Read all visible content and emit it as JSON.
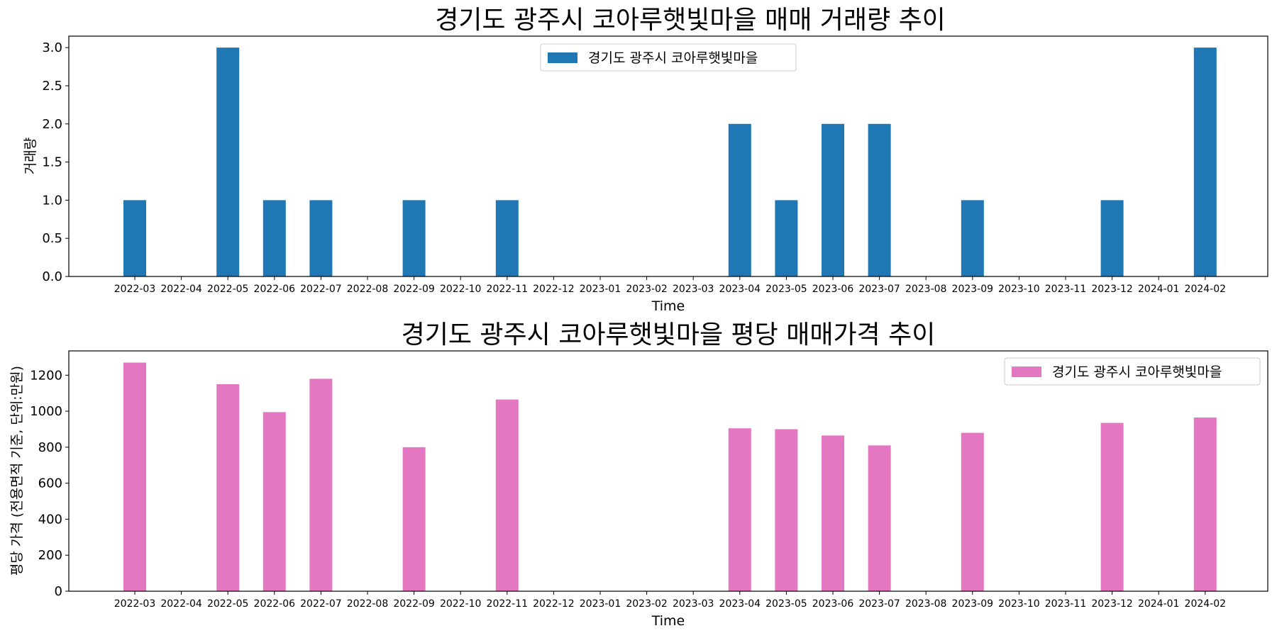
{
  "chart_data": [
    {
      "type": "bar",
      "title": "경기도 광주시 코아루햇빛마을 매매 거래량 추이",
      "xlabel": "Time",
      "ylabel": "거래량",
      "categories": [
        "2022-03",
        "2022-04",
        "2022-05",
        "2022-06",
        "2022-07",
        "2022-08",
        "2022-09",
        "2022-10",
        "2022-11",
        "2022-12",
        "2023-01",
        "2023-02",
        "2023-03",
        "2023-04",
        "2023-05",
        "2023-06",
        "2023-07",
        "2023-08",
        "2023-09",
        "2023-10",
        "2023-11",
        "2023-12",
        "2024-01",
        "2024-02"
      ],
      "series": [
        {
          "name": "경기도 광주시 코아루햇빛마을",
          "color": "#1f77b4",
          "values": [
            1,
            0,
            3,
            1,
            1,
            0,
            1,
            0,
            1,
            0,
            0,
            0,
            0,
            2,
            1,
            2,
            2,
            0,
            1,
            0,
            0,
            1,
            0,
            3
          ]
        }
      ],
      "ylim": [
        0,
        3.15
      ],
      "yticks": [
        "0.0",
        "0.5",
        "1.0",
        "1.5",
        "2.0",
        "2.5",
        "3.0"
      ],
      "legend_position": "upper-center",
      "grid": false
    },
    {
      "type": "bar",
      "title": "경기도 광주시 코아루햇빛마을 평당 매매가격 추이",
      "xlabel": "Time",
      "ylabel": "평당 가격 (전용면적 기준, 단위:만원)",
      "categories": [
        "2022-03",
        "2022-04",
        "2022-05",
        "2022-06",
        "2022-07",
        "2022-08",
        "2022-09",
        "2022-10",
        "2022-11",
        "2022-12",
        "2023-01",
        "2023-02",
        "2023-03",
        "2023-04",
        "2023-05",
        "2023-06",
        "2023-07",
        "2023-08",
        "2023-09",
        "2023-10",
        "2023-11",
        "2023-12",
        "2024-01",
        "2024-02"
      ],
      "series": [
        {
          "name": "경기도 광주시 코아루햇빛마을",
          "color": "#e377c2",
          "values": [
            1270,
            0,
            1150,
            995,
            1180,
            0,
            800,
            0,
            1065,
            0,
            0,
            0,
            0,
            905,
            900,
            865,
            810,
            0,
            880,
            0,
            0,
            935,
            0,
            965
          ]
        }
      ],
      "ylim": [
        0,
        1335
      ],
      "yticks": [
        "0",
        "200",
        "400",
        "600",
        "800",
        "1000",
        "1200"
      ],
      "legend_position": "upper-right",
      "grid": false
    }
  ]
}
